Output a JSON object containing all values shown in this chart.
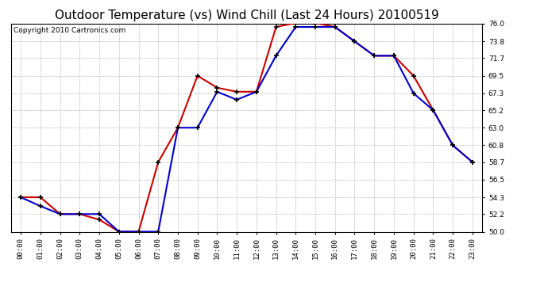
{
  "title": "Outdoor Temperature (vs) Wind Chill (Last 24 Hours) 20100519",
  "copyright": "Copyright 2010 Cartronics.com",
  "hours": [
    "00:00",
    "01:00",
    "02:00",
    "03:00",
    "04:00",
    "05:00",
    "06:00",
    "07:00",
    "08:00",
    "09:00",
    "10:00",
    "11:00",
    "12:00",
    "13:00",
    "14:00",
    "15:00",
    "16:00",
    "17:00",
    "18:00",
    "19:00",
    "20:00",
    "21:00",
    "22:00",
    "23:00"
  ],
  "temp": [
    54.3,
    54.3,
    52.2,
    52.2,
    51.5,
    50.0,
    50.0,
    58.7,
    63.0,
    69.5,
    68.0,
    67.5,
    67.5,
    75.6,
    76.1,
    76.1,
    75.6,
    73.8,
    72.0,
    72.0,
    69.5,
    65.2,
    60.8,
    58.7
  ],
  "windchill": [
    54.3,
    53.2,
    52.2,
    52.2,
    52.2,
    50.0,
    50.0,
    50.0,
    63.0,
    63.0,
    67.5,
    66.5,
    67.5,
    72.0,
    75.6,
    75.6,
    75.6,
    73.8,
    72.0,
    72.0,
    67.3,
    65.2,
    60.8,
    58.7
  ],
  "temp_color": "#cc0000",
  "windchill_color": "#0000cc",
  "ylim_min": 50.0,
  "ylim_max": 76.0,
  "yticks": [
    50.0,
    52.2,
    54.3,
    56.5,
    58.7,
    60.8,
    63.0,
    65.2,
    67.3,
    69.5,
    71.7,
    73.8,
    76.0
  ],
  "plot_bg_color": "#ffffff",
  "fig_bg_color": "#ffffff",
  "grid_color": "#bbbbbb",
  "title_fontsize": 11,
  "copyright_fontsize": 6.5,
  "tick_fontsize": 6.5,
  "marker_color": "#000000",
  "marker_size": 5,
  "linewidth": 1.5
}
